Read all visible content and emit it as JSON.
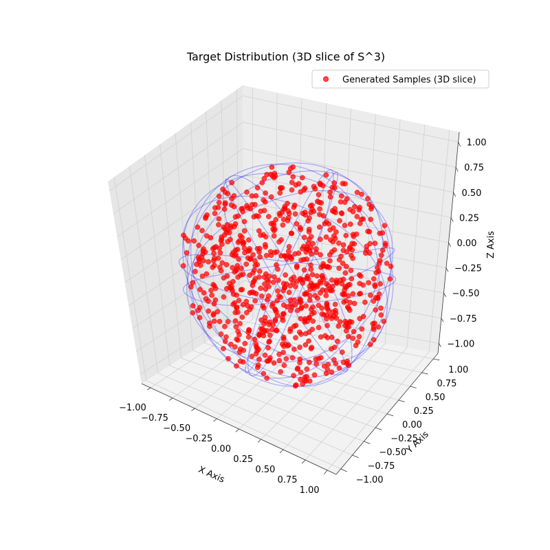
{
  "chart_data": {
    "type": "scatter",
    "title": "Target Distribution (3D slice of S^3)",
    "xlabel": "X Axis",
    "ylabel": "Y Axis",
    "zlabel": "Z Axis",
    "xlim": [
      -1.1,
      1.1
    ],
    "ylim": [
      -1.1,
      1.1
    ],
    "zlim": [
      -1.1,
      1.1
    ],
    "x_ticks": [
      -1.0,
      -0.75,
      -0.5,
      -0.25,
      0.0,
      0.25,
      0.5,
      0.75,
      1.0
    ],
    "y_ticks": [
      -1.0,
      -0.75,
      -0.5,
      -0.25,
      0.0,
      0.25,
      0.5,
      0.75,
      1.0
    ],
    "z_ticks": [
      -1.0,
      -0.75,
      -0.5,
      -0.25,
      0.0,
      0.25,
      0.5,
      0.75,
      1.0
    ],
    "tick_labels": [
      "−1.00",
      "−0.75",
      "−0.50",
      "−0.25",
      "0.00",
      "0.25",
      "0.50",
      "0.75",
      "1.00"
    ],
    "grid": true,
    "legend_position": "top-right",
    "series": [
      {
        "name": "Generated Samples (3D slice)",
        "type": "scatter",
        "color": "#ff0000",
        "point_count": 800,
        "radius_max": 1.0,
        "distribution": "uniform-in-ball"
      },
      {
        "type": "wireframe",
        "shape": "unit-sphere",
        "color": "#0000ff",
        "great_circles": 12
      }
    ]
  }
}
